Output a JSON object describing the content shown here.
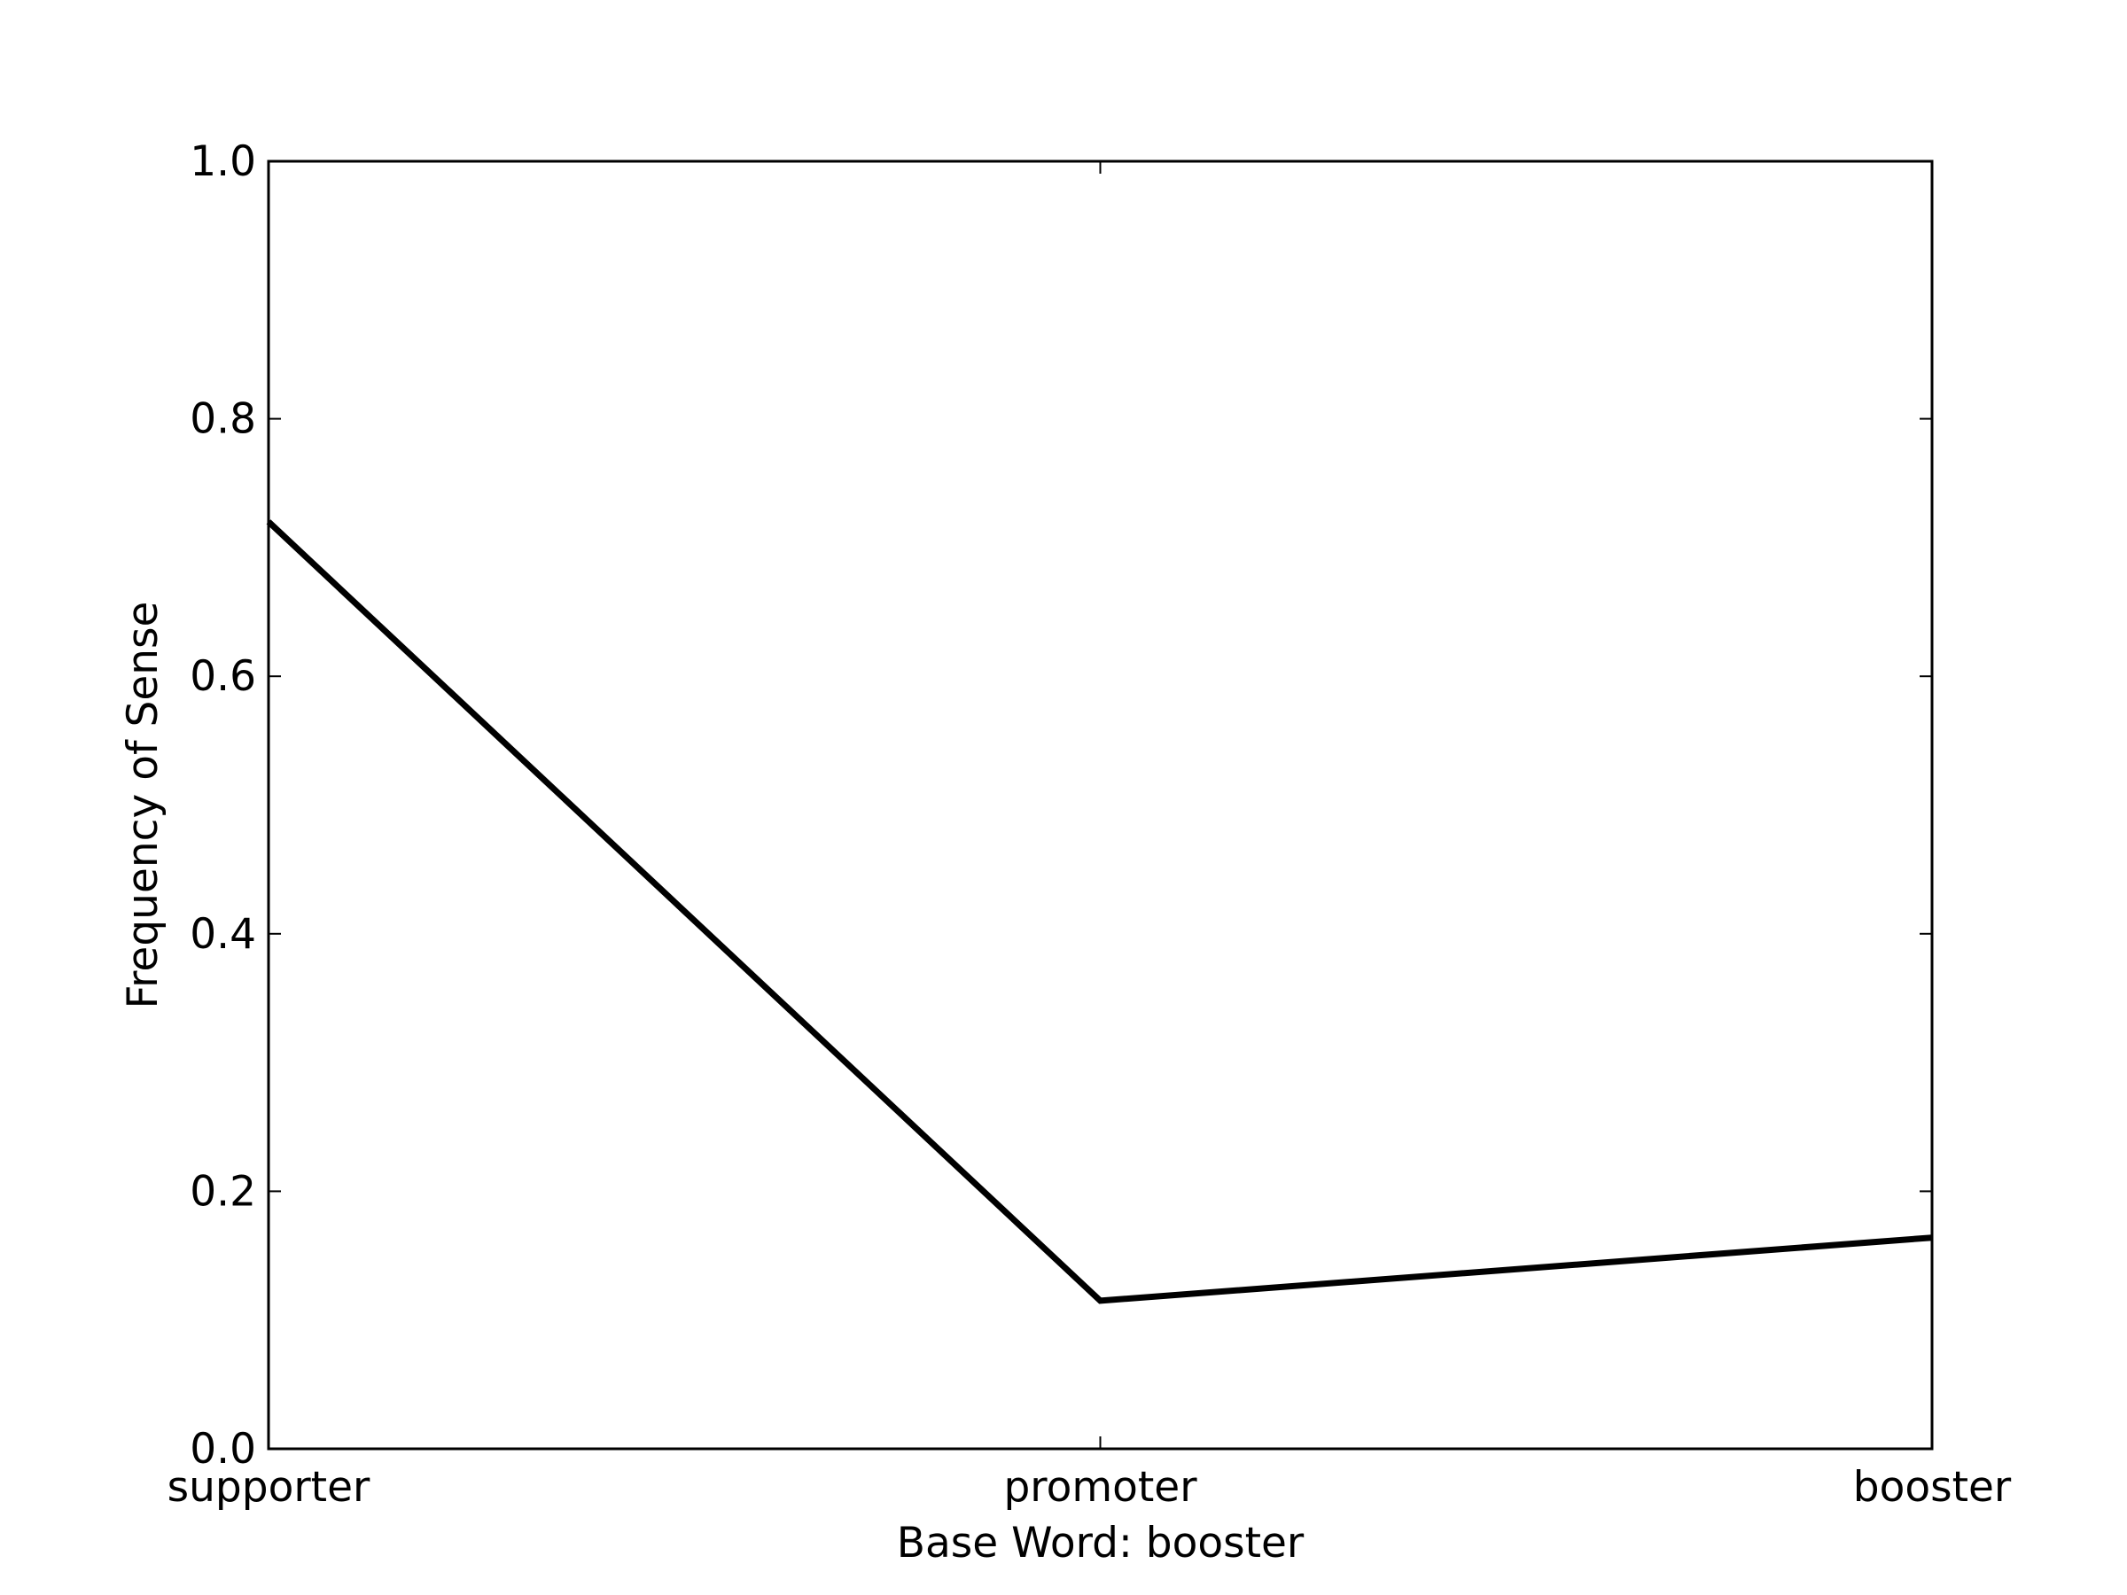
{
  "chart_data": {
    "type": "line",
    "categories": [
      "supporter",
      "promoter",
      "booster"
    ],
    "series": [
      {
        "values": [
          0.72,
          0.115,
          0.164
        ],
        "color": "#000000"
      }
    ],
    "xlabel": "Base Word: booster",
    "ylabel": "Frequency of Sense",
    "ylim": [
      0.0,
      1.0
    ],
    "yticks": [
      "0.0",
      "0.2",
      "0.4",
      "0.6",
      "0.8",
      "1.0"
    ],
    "grid": false,
    "legend": "none"
  }
}
